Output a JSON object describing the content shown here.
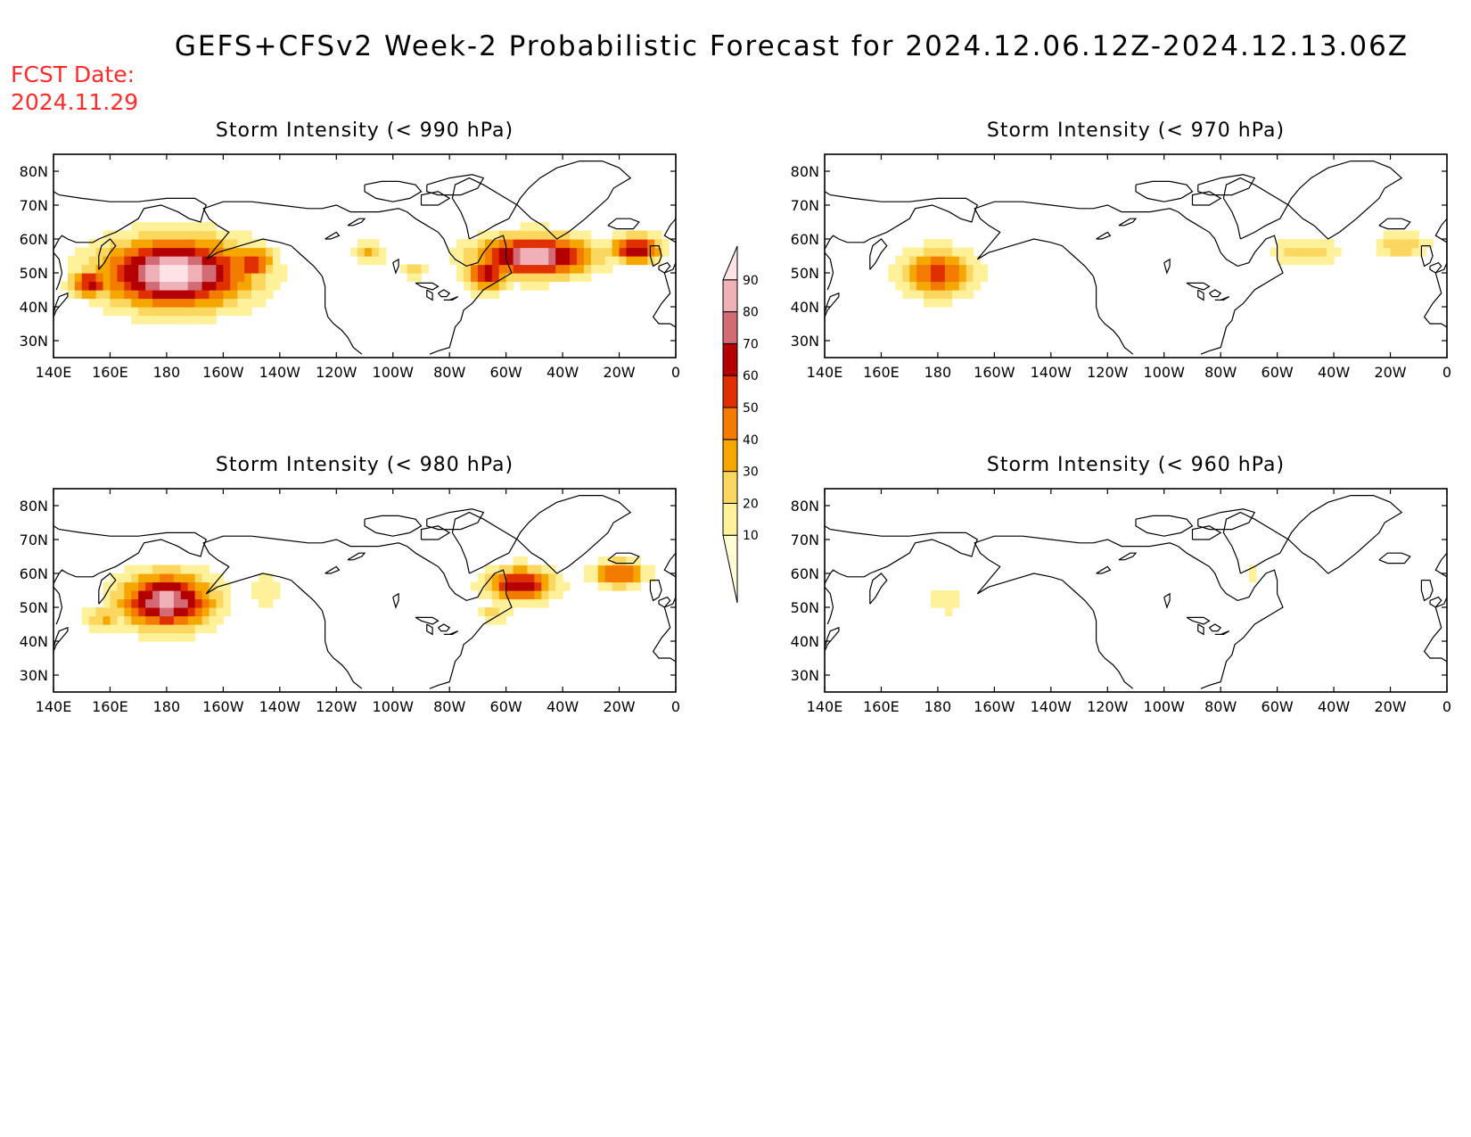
{
  "title": "GEFS+CFSv2 Week-2 Probabilistic Forecast for 2024.12.06.12Z-2024.12.13.06Z",
  "fcst_label": "FCST Date:",
  "fcst_date": "2024.11.29",
  "lat_ticks": [
    "80N",
    "70N",
    "60N",
    "50N",
    "40N",
    "30N"
  ],
  "lat_values": [
    80,
    70,
    60,
    50,
    40,
    30
  ],
  "lon_ticks": [
    "140E",
    "160E",
    "180",
    "160W",
    "140W",
    "120W",
    "100W",
    "80W",
    "60W",
    "40W",
    "20W",
    "0"
  ],
  "lon_values": [
    140,
    160,
    180,
    200,
    220,
    240,
    260,
    280,
    300,
    320,
    340,
    360
  ],
  "extent": {
    "lon": [
      140,
      360
    ],
    "lat": [
      25,
      85
    ]
  },
  "colorbar": {
    "labels": [
      "10",
      "20",
      "30",
      "40",
      "50",
      "60",
      "70",
      "80",
      "90"
    ],
    "levels": [
      10,
      20,
      30,
      40,
      50,
      60,
      70,
      80,
      90
    ],
    "colors": [
      "#fffcd6",
      "#fff09a",
      "#fbd760",
      "#f5a700",
      "#f27b00",
      "#e03000",
      "#b40000",
      "#d36b74",
      "#efb1b7",
      "#fde3e5"
    ]
  },
  "panels": [
    {
      "id": "990",
      "title": "Storm Intensity (< 990 hPa)",
      "features": [
        {
          "lon": 183,
          "lat": 50,
          "sx": 26,
          "sy": 10,
          "peak": 95
        },
        {
          "lon": 153,
          "lat": 47,
          "sx": 7,
          "sy": 4,
          "peak": 65
        },
        {
          "lon": 210,
          "lat": 53,
          "sx": 8,
          "sy": 5,
          "peak": 62
        },
        {
          "lon": 252,
          "lat": 56,
          "sx": 6,
          "sy": 3,
          "peak": 32
        },
        {
          "lon": 268,
          "lat": 51,
          "sx": 6,
          "sy": 3,
          "peak": 22
        },
        {
          "lon": 310,
          "lat": 55,
          "sx": 20,
          "sy": 6,
          "peak": 88
        },
        {
          "lon": 293,
          "lat": 50,
          "sx": 8,
          "sy": 5,
          "peak": 65
        },
        {
          "lon": 346,
          "lat": 57,
          "sx": 9,
          "sy": 4,
          "peak": 70
        }
      ]
    },
    {
      "id": "970",
      "title": "Storm Intensity (< 970 hPa)",
      "features": [
        {
          "lon": 180,
          "lat": 50,
          "sx": 13,
          "sy": 7,
          "peak": 55
        },
        {
          "lon": 310,
          "lat": 56,
          "sx": 14,
          "sy": 4,
          "peak": 25
        },
        {
          "lon": 344,
          "lat": 58,
          "sx": 10,
          "sy": 4,
          "peak": 28
        }
      ]
    },
    {
      "id": "980",
      "title": "Storm Intensity (< 980 hPa)",
      "features": [
        {
          "lon": 180,
          "lat": 52,
          "sx": 16,
          "sy": 8,
          "peak": 85
        },
        {
          "lon": 158,
          "lat": 47,
          "sx": 8,
          "sy": 4,
          "peak": 32
        },
        {
          "lon": 215,
          "lat": 55,
          "sx": 6,
          "sy": 5,
          "peak": 22
        },
        {
          "lon": 305,
          "lat": 57,
          "sx": 12,
          "sy": 5,
          "peak": 68
        },
        {
          "lon": 340,
          "lat": 60,
          "sx": 9,
          "sy": 4,
          "peak": 55
        },
        {
          "lon": 296,
          "lat": 48,
          "sx": 6,
          "sy": 3,
          "peak": 25
        }
      ]
    },
    {
      "id": "960",
      "title": "Storm Intensity (< 960 hPa)",
      "features": [
        {
          "lon": 183,
          "lat": 52,
          "sx": 7,
          "sy": 4,
          "peak": 20
        },
        {
          "lon": 292,
          "lat": 60,
          "sx": 3,
          "sy": 2,
          "peak": 18
        }
      ]
    }
  ]
}
